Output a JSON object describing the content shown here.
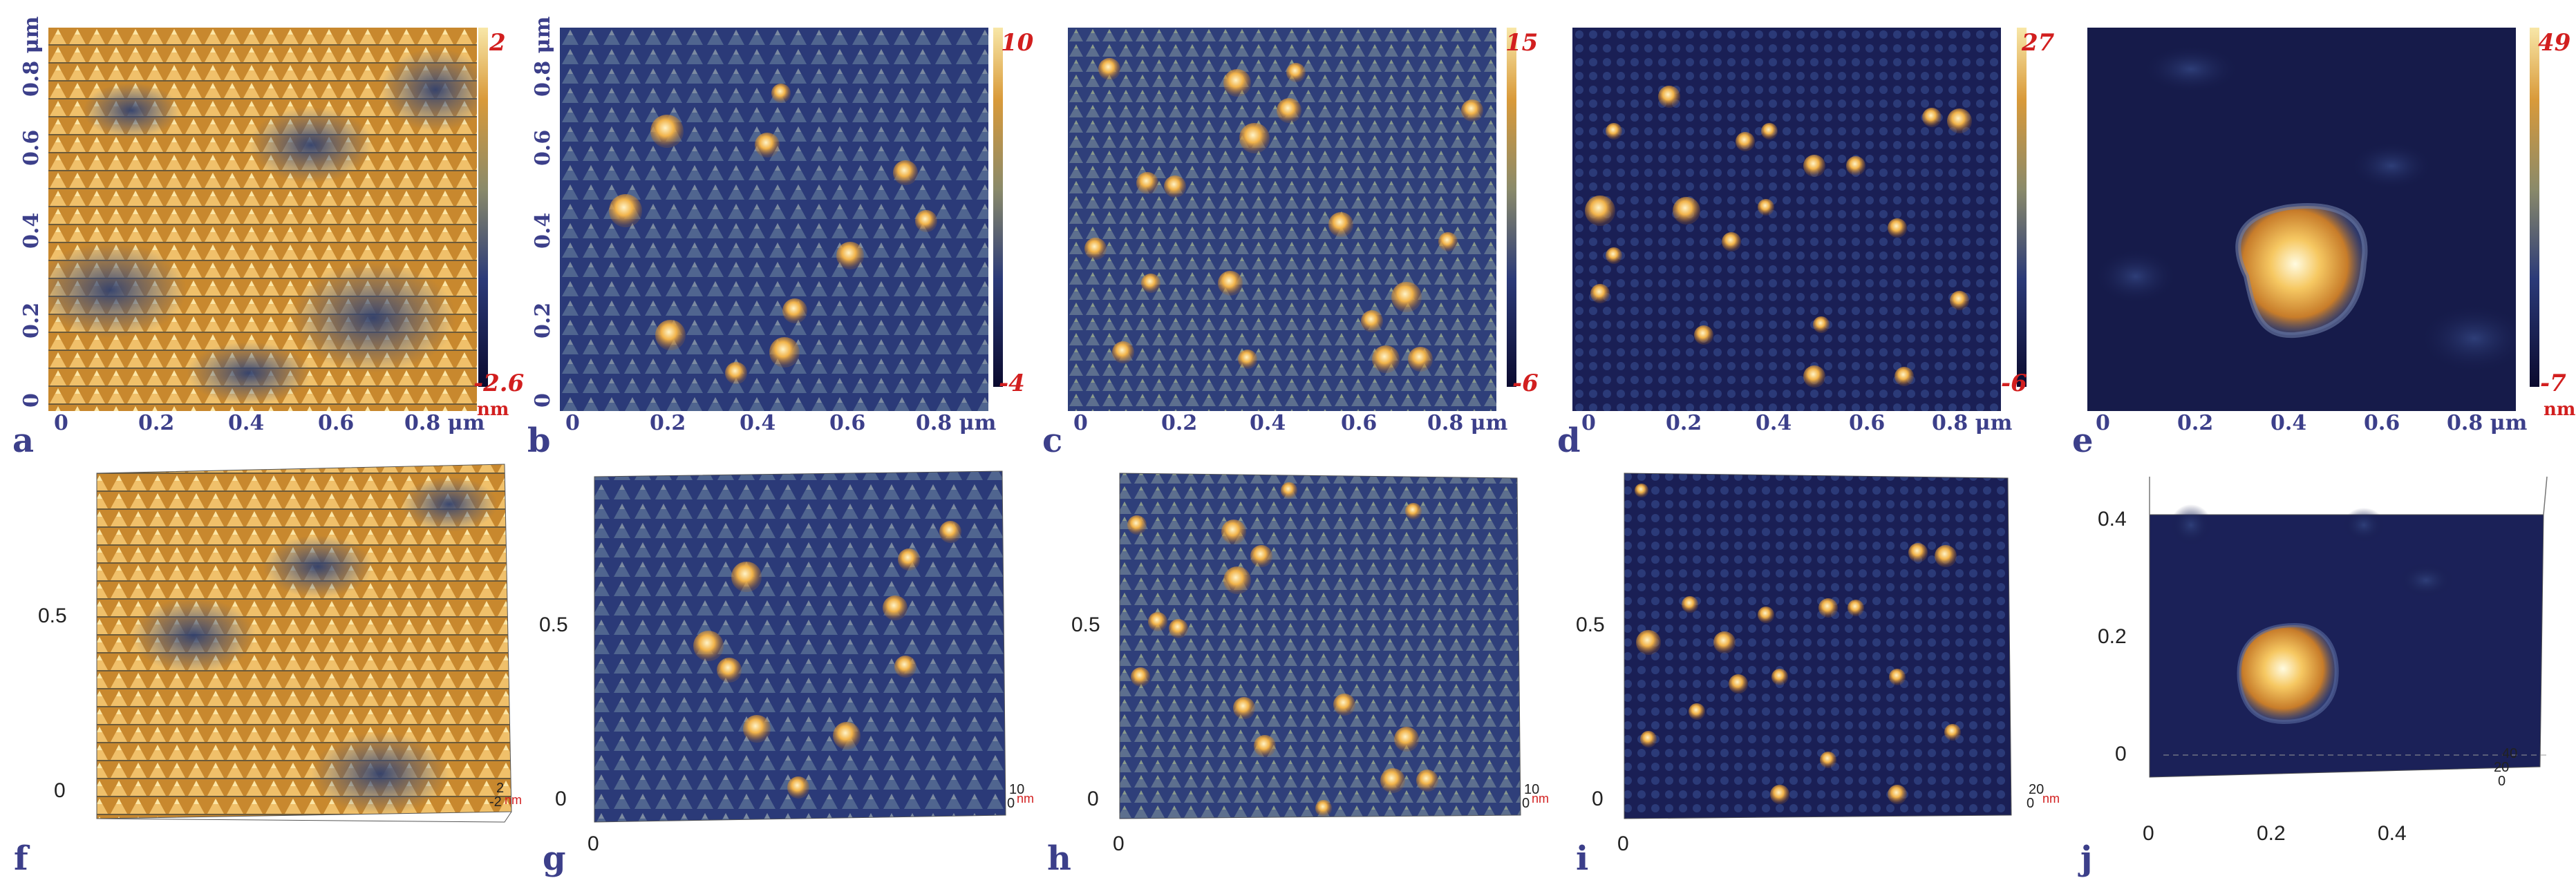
{
  "colors": {
    "text_dark": "#3c3f8a",
    "accent_red": "#d21f1f",
    "colormap": [
      "#0a0a2e",
      "#2b3a78",
      "#4a5f8e",
      "#8a8a6a",
      "#d99a3a",
      "#f8e7a8"
    ]
  },
  "panels_2d": [
    {
      "letter": "a",
      "cb_max": "2",
      "cb_min": "-2.6",
      "unit": "nm"
    },
    {
      "letter": "b",
      "cb_max": "10",
      "cb_min": "-4",
      "unit": "nm"
    },
    {
      "letter": "c",
      "cb_max": "15",
      "cb_min": "-6",
      "unit": "nm"
    },
    {
      "letter": "d",
      "cb_max": "27",
      "cb_min": "-6",
      "unit": "nm"
    },
    {
      "letter": "e",
      "cb_max": "49",
      "cb_min": "-7",
      "unit": "nm"
    }
  ],
  "axis_2d": {
    "y_ticks": [
      "0",
      "0.2",
      "0.4",
      "0.6",
      "0.8 μm"
    ],
    "x_ticks": [
      "0",
      "0.2",
      "0.4",
      "0.6",
      "0.8 μm"
    ]
  },
  "panels_3d": [
    {
      "letter": "f",
      "y_ticks": [
        "0",
        "0.5"
      ],
      "x_ticks": [],
      "z_top": "2",
      "z_bot": "-2",
      "z_unit": "nm"
    },
    {
      "letter": "g",
      "y_ticks": [
        "0",
        "0.5"
      ],
      "x_ticks": [
        "0"
      ],
      "z_top": "10",
      "z_bot": "0",
      "z_unit": "nm"
    },
    {
      "letter": "h",
      "y_ticks": [
        "0",
        "0.5"
      ],
      "x_ticks": [
        "0"
      ],
      "z_top": "10",
      "z_bot": "0",
      "z_unit": "nm"
    },
    {
      "letter": "i",
      "y_ticks": [
        "0",
        "0.5"
      ],
      "x_ticks": [
        "0"
      ],
      "z_top": "20",
      "z_bot": "0",
      "z_unit": "nm"
    },
    {
      "letter": "j",
      "y_ticks": [
        "0",
        "0.2",
        "0.4"
      ],
      "x_ticks": [
        "0",
        "0.2",
        "0.4"
      ],
      "z_ticks": [
        "40",
        "20",
        "0"
      ]
    }
  ]
}
